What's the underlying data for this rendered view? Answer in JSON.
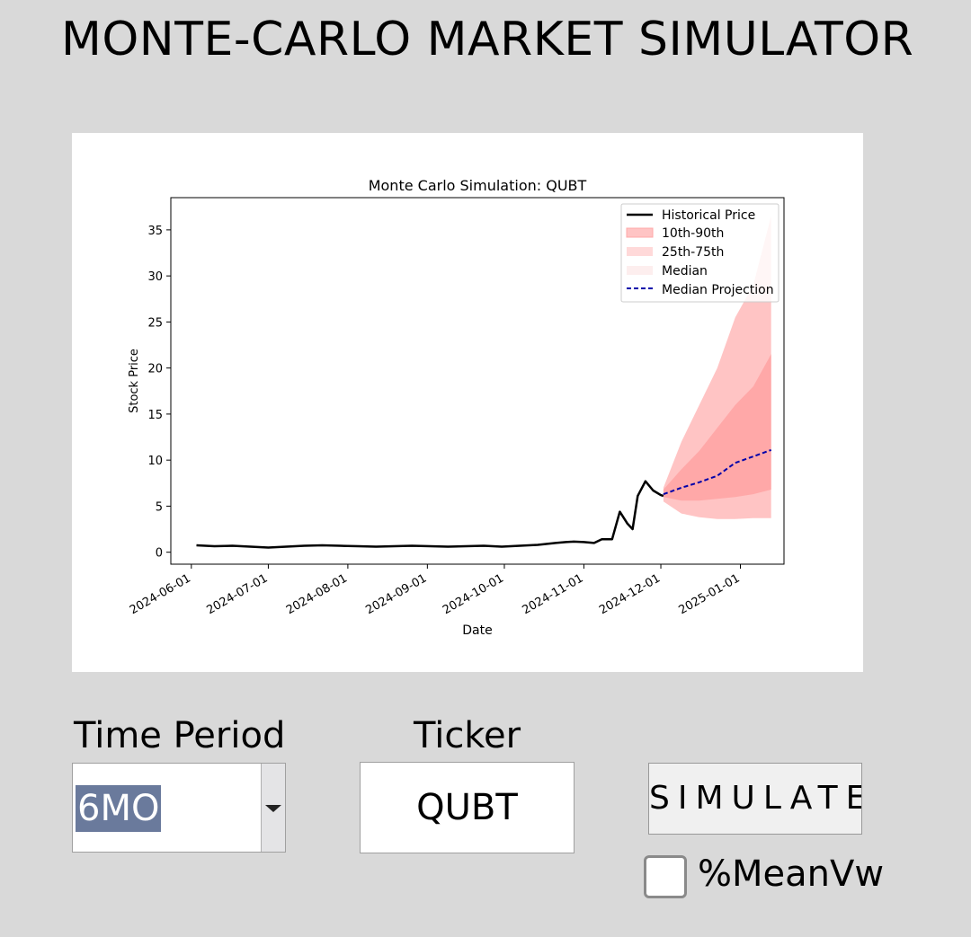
{
  "app": {
    "title": "MONTE-CARLO MARKET SIMULATOR"
  },
  "chart_data": {
    "type": "line",
    "title": "Monte Carlo Simulation: QUBT",
    "xlabel": "Date",
    "ylabel": "Stock Price",
    "xlim": [
      "2024-05-24",
      "2025-01-18"
    ],
    "ylim": [
      -1.3,
      38.5
    ],
    "x_ticks": [
      "2024-06-01",
      "2024-07-01",
      "2024-08-01",
      "2024-09-01",
      "2024-10-01",
      "2024-11-01",
      "2024-12-01",
      "2025-01-01"
    ],
    "y_ticks": [
      0,
      5,
      10,
      15,
      20,
      25,
      30,
      35
    ],
    "legend_position": "top-right",
    "legend": [
      "Historical Price",
      "10th-90th",
      "25th-75th",
      "Median",
      "Median Projection"
    ],
    "colors": {
      "historical": "#000000",
      "band_10_90": "#ffc4c4",
      "band_25_75": "#ffa8a8",
      "median_patch": "#fdeeee",
      "projection": "#0000aa"
    },
    "series": [
      {
        "name": "Historical Price",
        "x": [
          "2024-06-03",
          "2024-06-10",
          "2024-06-17",
          "2024-06-24",
          "2024-07-01",
          "2024-07-08",
          "2024-07-15",
          "2024-07-22",
          "2024-07-29",
          "2024-08-05",
          "2024-08-12",
          "2024-08-19",
          "2024-08-26",
          "2024-09-02",
          "2024-09-09",
          "2024-09-16",
          "2024-09-23",
          "2024-09-30",
          "2024-10-07",
          "2024-10-14",
          "2024-10-21",
          "2024-10-25",
          "2024-10-28",
          "2024-11-01",
          "2024-11-05",
          "2024-11-08",
          "2024-11-12",
          "2024-11-15",
          "2024-11-18",
          "2024-11-20",
          "2024-11-22",
          "2024-11-25",
          "2024-11-28",
          "2024-12-01",
          "2024-12-02"
        ],
        "values": [
          0.75,
          0.65,
          0.7,
          0.6,
          0.5,
          0.6,
          0.7,
          0.75,
          0.7,
          0.65,
          0.6,
          0.65,
          0.7,
          0.65,
          0.6,
          0.65,
          0.7,
          0.6,
          0.7,
          0.8,
          1.0,
          1.1,
          1.15,
          1.1,
          1.0,
          1.4,
          1.4,
          4.4,
          3.1,
          2.5,
          6.1,
          7.7,
          6.7,
          6.2,
          6.1
        ]
      },
      {
        "name": "Median Projection",
        "x": [
          "2024-12-02",
          "2024-12-09",
          "2024-12-16",
          "2024-12-23",
          "2024-12-30",
          "2025-01-06",
          "2025-01-13"
        ],
        "values": [
          6.3,
          7.0,
          7.6,
          8.3,
          9.7,
          10.4,
          11.1
        ]
      },
      {
        "name": "10th-90th",
        "x": [
          "2024-12-02",
          "2024-12-09",
          "2024-12-16",
          "2024-12-23",
          "2024-12-30",
          "2025-01-06",
          "2025-01-13"
        ],
        "low": [
          5.5,
          4.2,
          3.8,
          3.6,
          3.6,
          3.7,
          3.7
        ],
        "high": [
          7.0,
          12.0,
          16.0,
          20.0,
          25.5,
          29.0,
          36.5
        ]
      },
      {
        "name": "25th-75th",
        "x": [
          "2024-12-02",
          "2024-12-09",
          "2024-12-16",
          "2024-12-23",
          "2024-12-30",
          "2025-01-06",
          "2025-01-13"
        ],
        "low": [
          6.0,
          5.6,
          5.6,
          5.8,
          6.0,
          6.3,
          6.8
        ],
        "high": [
          6.8,
          9.0,
          11.0,
          13.5,
          16.0,
          18.0,
          21.5
        ]
      }
    ]
  },
  "controls": {
    "time_period_label": "Time Period",
    "time_period_value": "6MO",
    "ticker_label": "Ticker",
    "ticker_value": "QUBT",
    "simulate_label": "SIMULATE",
    "checkbox_label": "%MeanVw",
    "checkbox_checked": false
  }
}
